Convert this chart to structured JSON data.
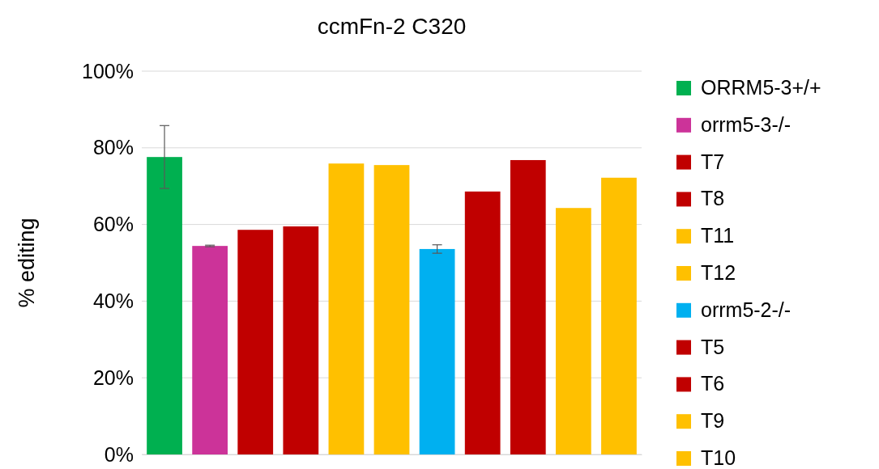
{
  "chart_data": {
    "type": "bar",
    "title": "ccmFn-2 C320",
    "ylabel": "% editing",
    "categories": [
      null,
      null,
      null,
      null,
      null,
      null,
      null,
      null,
      null,
      null,
      null
    ],
    "ylim": [
      0,
      100
    ],
    "yticks": [
      {
        "value": 0,
        "label": "0%"
      },
      {
        "value": 20,
        "label": "20%"
      },
      {
        "value": 40,
        "label": "40%"
      },
      {
        "value": 60,
        "label": "60%"
      },
      {
        "value": 80,
        "label": "80%"
      },
      {
        "value": 100,
        "label": "100%"
      }
    ],
    "grid": "y",
    "legend": "right",
    "series": [
      {
        "name": "ORRM5-3+/+",
        "color": "#00b050",
        "values": [
          77.6,
          null,
          null,
          null,
          null,
          null,
          null,
          null,
          null,
          null,
          null
        ],
        "errors": [
          8.2,
          null,
          null,
          null,
          null,
          null,
          null,
          null,
          null,
          null,
          null
        ]
      },
      {
        "name": "orrm5-3-/-",
        "color": "#cc3399",
        "values": [
          null,
          54.4,
          null,
          null,
          null,
          null,
          null,
          null,
          null,
          null,
          null
        ],
        "errors": [
          null,
          0.2,
          null,
          null,
          null,
          null,
          null,
          null,
          null,
          null,
          null
        ]
      },
      {
        "name": "T7",
        "color": "#c00000",
        "values": [
          null,
          null,
          58.6,
          null,
          null,
          null,
          null,
          null,
          null,
          null,
          null
        ]
      },
      {
        "name": "T8",
        "color": "#c00000",
        "values": [
          null,
          null,
          null,
          59.5,
          null,
          null,
          null,
          null,
          null,
          null,
          null
        ]
      },
      {
        "name": "T11",
        "color": "#ffc000",
        "values": [
          null,
          null,
          null,
          null,
          75.9,
          null,
          null,
          null,
          null,
          null,
          null
        ]
      },
      {
        "name": "T12",
        "color": "#ffc000",
        "values": [
          null,
          null,
          null,
          null,
          null,
          75.5,
          null,
          null,
          null,
          null,
          null
        ]
      },
      {
        "name": "orrm5-2-/-",
        "color": "#00b0f0",
        "values": [
          null,
          null,
          null,
          null,
          null,
          null,
          53.6,
          null,
          null,
          null,
          null
        ],
        "errors": [
          null,
          null,
          null,
          null,
          null,
          null,
          1.1,
          null,
          null,
          null,
          null
        ]
      },
      {
        "name": "T5",
        "color": "#c00000",
        "values": [
          null,
          null,
          null,
          null,
          null,
          null,
          null,
          68.6,
          null,
          null,
          null
        ]
      },
      {
        "name": "T6",
        "color": "#c00000",
        "values": [
          null,
          null,
          null,
          null,
          null,
          null,
          null,
          null,
          76.8,
          null,
          null
        ]
      },
      {
        "name": "T9",
        "color": "#ffc000",
        "values": [
          null,
          null,
          null,
          null,
          null,
          null,
          null,
          null,
          null,
          64.3,
          null
        ]
      },
      {
        "name": "T10",
        "color": "#ffc000",
        "values": [
          null,
          null,
          null,
          null,
          null,
          null,
          null,
          null,
          null,
          null,
          72.2
        ]
      }
    ]
  }
}
